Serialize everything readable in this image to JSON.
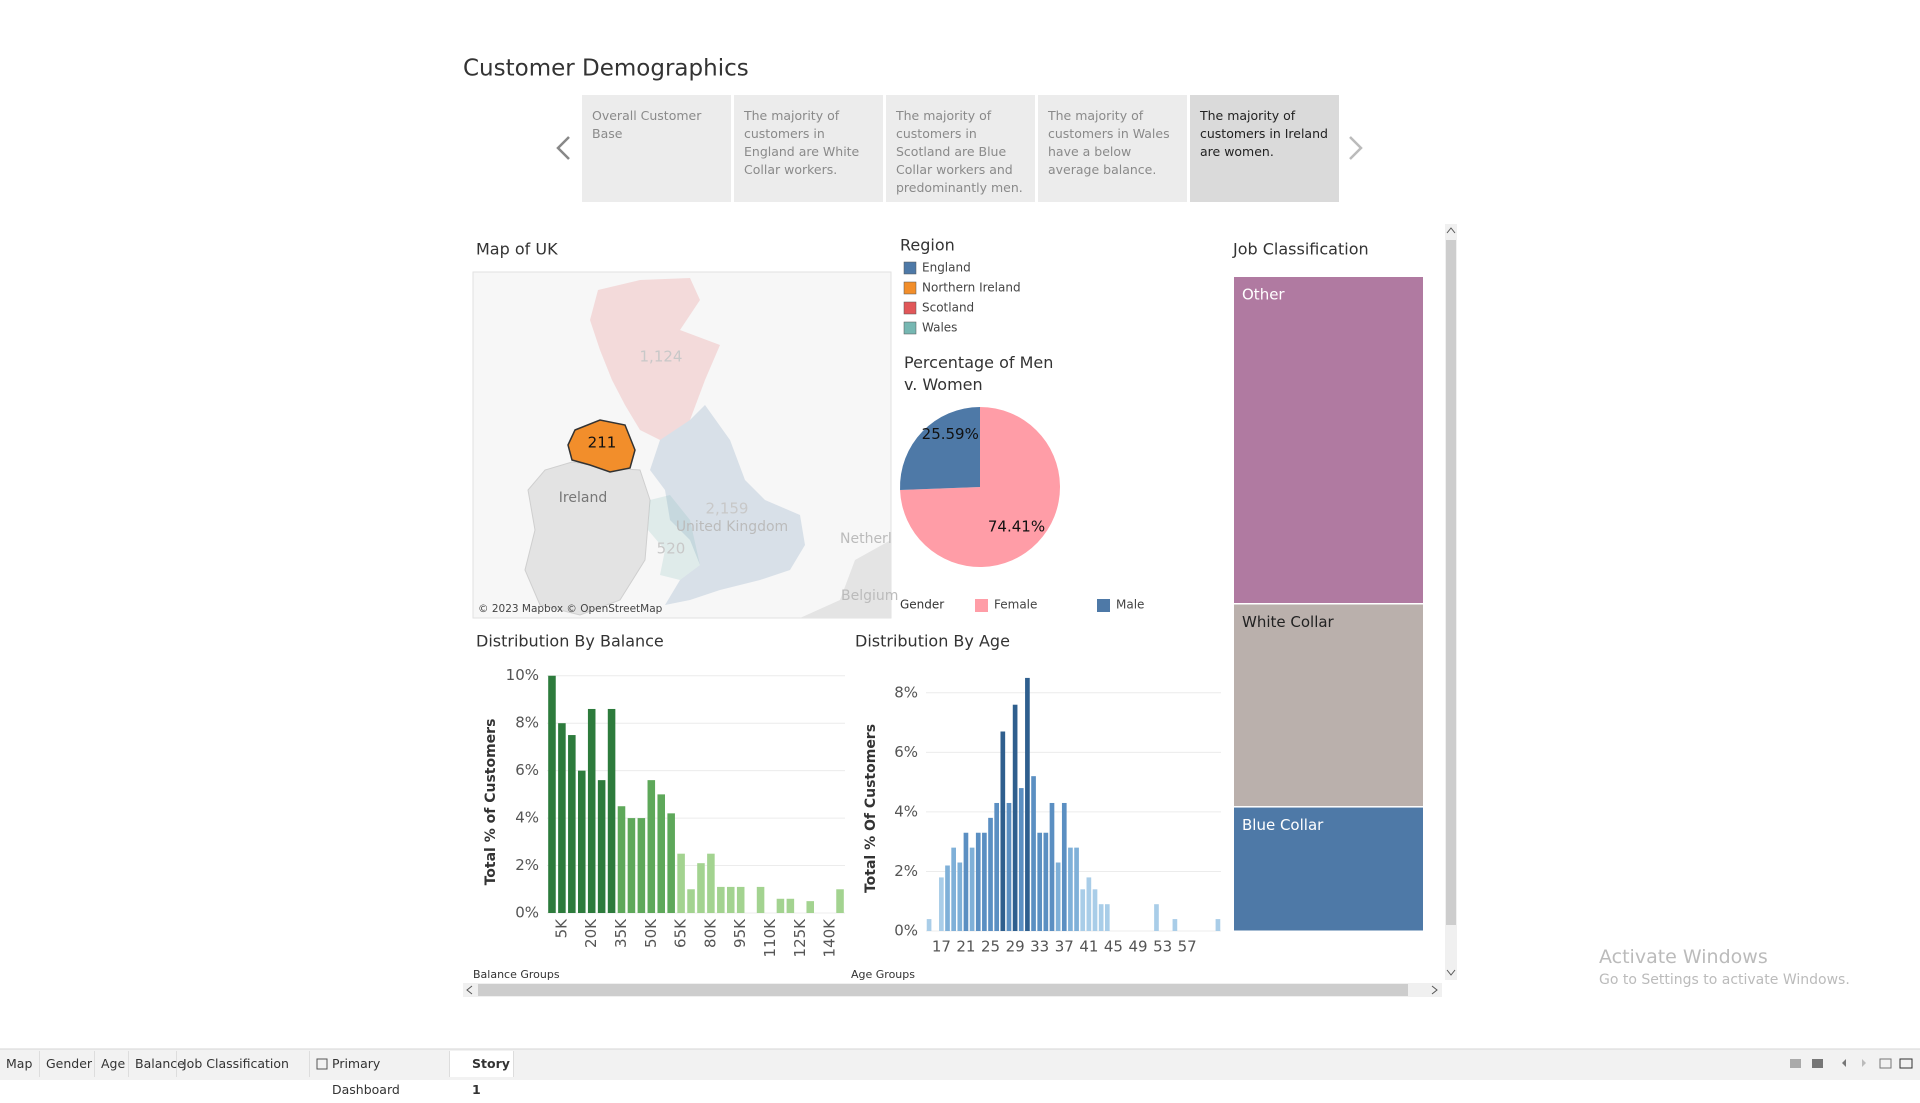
{
  "header": {
    "title": "Customer Demographics"
  },
  "story": {
    "points": [
      "Overall Customer Base",
      "The majority of customers in England are White Collar workers.",
      "The majority of customers in Scotland are Blue Collar workers and predominantly men.",
      "The majority of customers in Wales have a below average balance.",
      "The majority of customers in Ireland are women."
    ],
    "active_point": 4
  },
  "map": {
    "title": "Map of UK",
    "attribution": "© 2023 Mapbox © OpenStreetMap",
    "places": [
      "Ireland",
      "United Kingdom",
      "Netherl",
      "Belgium"
    ],
    "highlighted_region": 1
  },
  "regions": {
    "title": "Region",
    "items": [
      {
        "name": "England",
        "color": "#4e79a7",
        "count": 2159,
        "count_label": "2,159"
      },
      {
        "name": "Northern Ireland",
        "color": "#f28e2b",
        "count": 211,
        "count_label": "211"
      },
      {
        "name": "Scotland",
        "color": "#e15759",
        "count": 1124,
        "count_label": "1,124"
      },
      {
        "name": "Wales",
        "color": "#76b7b2",
        "count": 520,
        "count_label": "520"
      }
    ]
  },
  "chart_data": [
    {
      "type": "bar",
      "title": "Distribution By Balance",
      "y_label": "Total % of Customers",
      "x_label": "Balance Groups",
      "x_label_rotated": true,
      "categories": [
        null,
        "5K",
        null,
        null,
        "20K",
        null,
        null,
        "35K",
        null,
        null,
        "50K",
        null,
        null,
        "65K",
        null,
        null,
        "80K",
        null,
        null,
        "95K",
        null,
        null,
        "110K",
        null,
        null,
        "125K",
        null,
        null,
        "140K",
        null
      ],
      "values": [
        10,
        8.0,
        7.5,
        6.0,
        8.6,
        5.6,
        8.6,
        4.5,
        4.0,
        4.0,
        5.6,
        5.0,
        4.2,
        2.5,
        1.0,
        2.1,
        2.5,
        1.1,
        1.1,
        1.1,
        0,
        1.1,
        0,
        0.6,
        0.6,
        0,
        0.5,
        0,
        0,
        1.0
      ],
      "colors": [
        "#2d7b3c",
        "#2d7b3c",
        "#2d7b3c",
        "#2d7b3c",
        "#2d7b3c",
        "#2d7b3c",
        "#2d7b3c",
        "#5ea85a",
        "#5ea85a",
        "#5ea85a",
        "#5ea85a",
        "#5ea85a",
        "#5ea85a",
        "#a3d390",
        "#a3d390",
        "#a3d390",
        "#a3d390",
        "#a3d390",
        "#a3d390",
        "#a3d390",
        "#a3d390",
        "#a3d390",
        "#a3d390",
        "#a3d390",
        "#a3d390",
        "#a3d390",
        "#a3d390",
        "#a3d390",
        "#a3d390",
        "#a3d390"
      ],
      "ylim": [
        0,
        10.2
      ],
      "yticks": [
        {
          "value": 0,
          "label": "0%"
        },
        {
          "value": 2,
          "label": "2%"
        },
        {
          "value": 4,
          "label": "4%"
        },
        {
          "value": 6,
          "label": "6%"
        },
        {
          "value": 8,
          "label": "8%"
        },
        {
          "value": 10,
          "label": "10%"
        }
      ],
      "grid": true
    },
    {
      "type": "bar",
      "title": "Distribution By Age",
      "y_label": "Total % Of Customers",
      "x_label": "Age Groups",
      "x_label_rotated": false,
      "categories": [
        null,
        null,
        "17",
        null,
        null,
        null,
        "21",
        null,
        null,
        null,
        "25",
        null,
        null,
        null,
        "29",
        null,
        null,
        null,
        "33",
        null,
        null,
        null,
        "37",
        null,
        null,
        null,
        "41",
        null,
        null,
        null,
        "45",
        null,
        null,
        null,
        "49",
        null,
        null,
        null,
        "53",
        null,
        null,
        null,
        "57",
        null,
        null,
        null,
        null,
        null
      ],
      "values": [
        0.4,
        0,
        1.8,
        2.2,
        2.8,
        2.3,
        3.3,
        2.8,
        3.3,
        3.3,
        3.8,
        4.3,
        6.7,
        4.3,
        7.6,
        4.8,
        8.5,
        5.2,
        3.3,
        3.3,
        4.3,
        2.3,
        4.3,
        2.8,
        2.8,
        1.4,
        1.8,
        1.4,
        0.9,
        0.9,
        0,
        0,
        0,
        0,
        0,
        0,
        0,
        0.9,
        0,
        0,
        0.4,
        0,
        0,
        0,
        0,
        0,
        0,
        0.4
      ],
      "colors": [
        "#a9cde8",
        "#a9cde8",
        "#a9cde8",
        "#7fb0d8",
        "#7fb0d8",
        "#7fb0d8",
        "#5b8fc2",
        "#7fb0d8",
        "#5b8fc2",
        "#5b8fc2",
        "#5b8fc2",
        "#5b8fc2",
        "#2f5f8e",
        "#5b8fc2",
        "#2f5f8e",
        "#5b8fc2",
        "#2f5f8e",
        "#5b8fc2",
        "#5b8fc2",
        "#5b8fc2",
        "#5b8fc2",
        "#7fb0d8",
        "#5b8fc2",
        "#7fb0d8",
        "#7fb0d8",
        "#a9cde8",
        "#a9cde8",
        "#a9cde8",
        "#a9cde8",
        "#a9cde8",
        "#a9cde8",
        "#a9cde8",
        "#a9cde8",
        "#a9cde8",
        "#a9cde8",
        "#a9cde8",
        "#a9cde8",
        "#a9cde8",
        "#a9cde8",
        "#a9cde8",
        "#a9cde8",
        "#a9cde8",
        "#a9cde8",
        "#a9cde8",
        "#a9cde8",
        "#a9cde8",
        "#a9cde8",
        "#a9cde8"
      ],
      "ylim": [
        0,
        8.9
      ],
      "yticks": [
        {
          "value": 0,
          "label": "0%"
        },
        {
          "value": 2,
          "label": "2%"
        },
        {
          "value": 4,
          "label": "4%"
        },
        {
          "value": 6,
          "label": "6%"
        },
        {
          "value": 8,
          "label": "8%"
        }
      ],
      "grid": true
    },
    {
      "type": "pie",
      "title": "Percentage of Men v. Women",
      "legend_title": "Gender",
      "categories": [
        "Female",
        "Male"
      ],
      "values": [
        74.41,
        25.59
      ],
      "value_labels": [
        "74.41%",
        "25.59%"
      ],
      "colors": [
        "#ff9da7",
        "#4e79a7"
      ]
    },
    {
      "type": "treemap",
      "title": "Job Classification",
      "categories": [
        "Other",
        "White Collar",
        "Blue Collar"
      ],
      "values": [
        50,
        31,
        19
      ],
      "colors": [
        "#b07aa1",
        "#bab0ac",
        "#4e79a7"
      ]
    }
  ],
  "bottom_tabs": {
    "items": [
      "Map",
      "Gender",
      "Age",
      "Balance",
      "Job Classification",
      "Primary Dashboard",
      "Story 1"
    ],
    "active": 6
  },
  "windows_notice": {
    "title": "Activate Windows",
    "subtitle": "Go to Settings to activate Windows."
  }
}
